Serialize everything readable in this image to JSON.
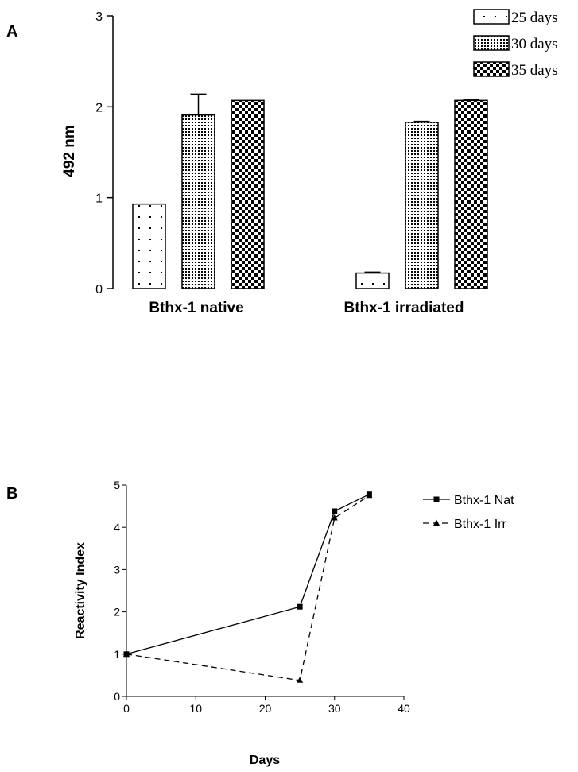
{
  "chart_data": [
    {
      "panel": "A",
      "type": "bar",
      "ylabel": "492 nm",
      "ylim": [
        0,
        3
      ],
      "yticks": [
        "0",
        "1",
        "2",
        "3"
      ],
      "categories": [
        "Bthx-1 native",
        "Bthx-1 irradiated"
      ],
      "series": [
        {
          "name": "25 days",
          "values": [
            0.93,
            0.17
          ],
          "errors": [
            0.0,
            0.01
          ],
          "pattern": "sparse-dots"
        },
        {
          "name": "30 days",
          "values": [
            1.91,
            1.83
          ],
          "errors": [
            0.23,
            0.01
          ],
          "pattern": "dense-dots"
        },
        {
          "name": "35 days",
          "values": [
            2.07,
            2.07
          ],
          "errors": [
            0.0,
            0.01
          ],
          "pattern": "checker"
        }
      ],
      "legend": "top-right",
      "grid": false
    },
    {
      "panel": "B",
      "type": "line",
      "xlabel": "Days",
      "ylabel": "Reactivity Index",
      "xlim": [
        0,
        40
      ],
      "ylim": [
        0,
        5
      ],
      "xticks": [
        "0",
        "10",
        "20",
        "30",
        "40"
      ],
      "yticks": [
        "0",
        "1",
        "2",
        "3",
        "4",
        "5"
      ],
      "series": [
        {
          "name": "Bthx-1 Nat",
          "marker": "square",
          "line": "solid",
          "x": [
            0,
            25,
            30,
            35
          ],
          "y": [
            1.0,
            2.12,
            4.38,
            4.78
          ]
        },
        {
          "name": "Bthx-1 Irr",
          "marker": "triangle",
          "line": "dashed",
          "x": [
            0,
            25,
            30,
            35
          ],
          "y": [
            1.0,
            0.38,
            4.22,
            4.75
          ]
        }
      ],
      "legend": "right",
      "grid": false
    }
  ]
}
